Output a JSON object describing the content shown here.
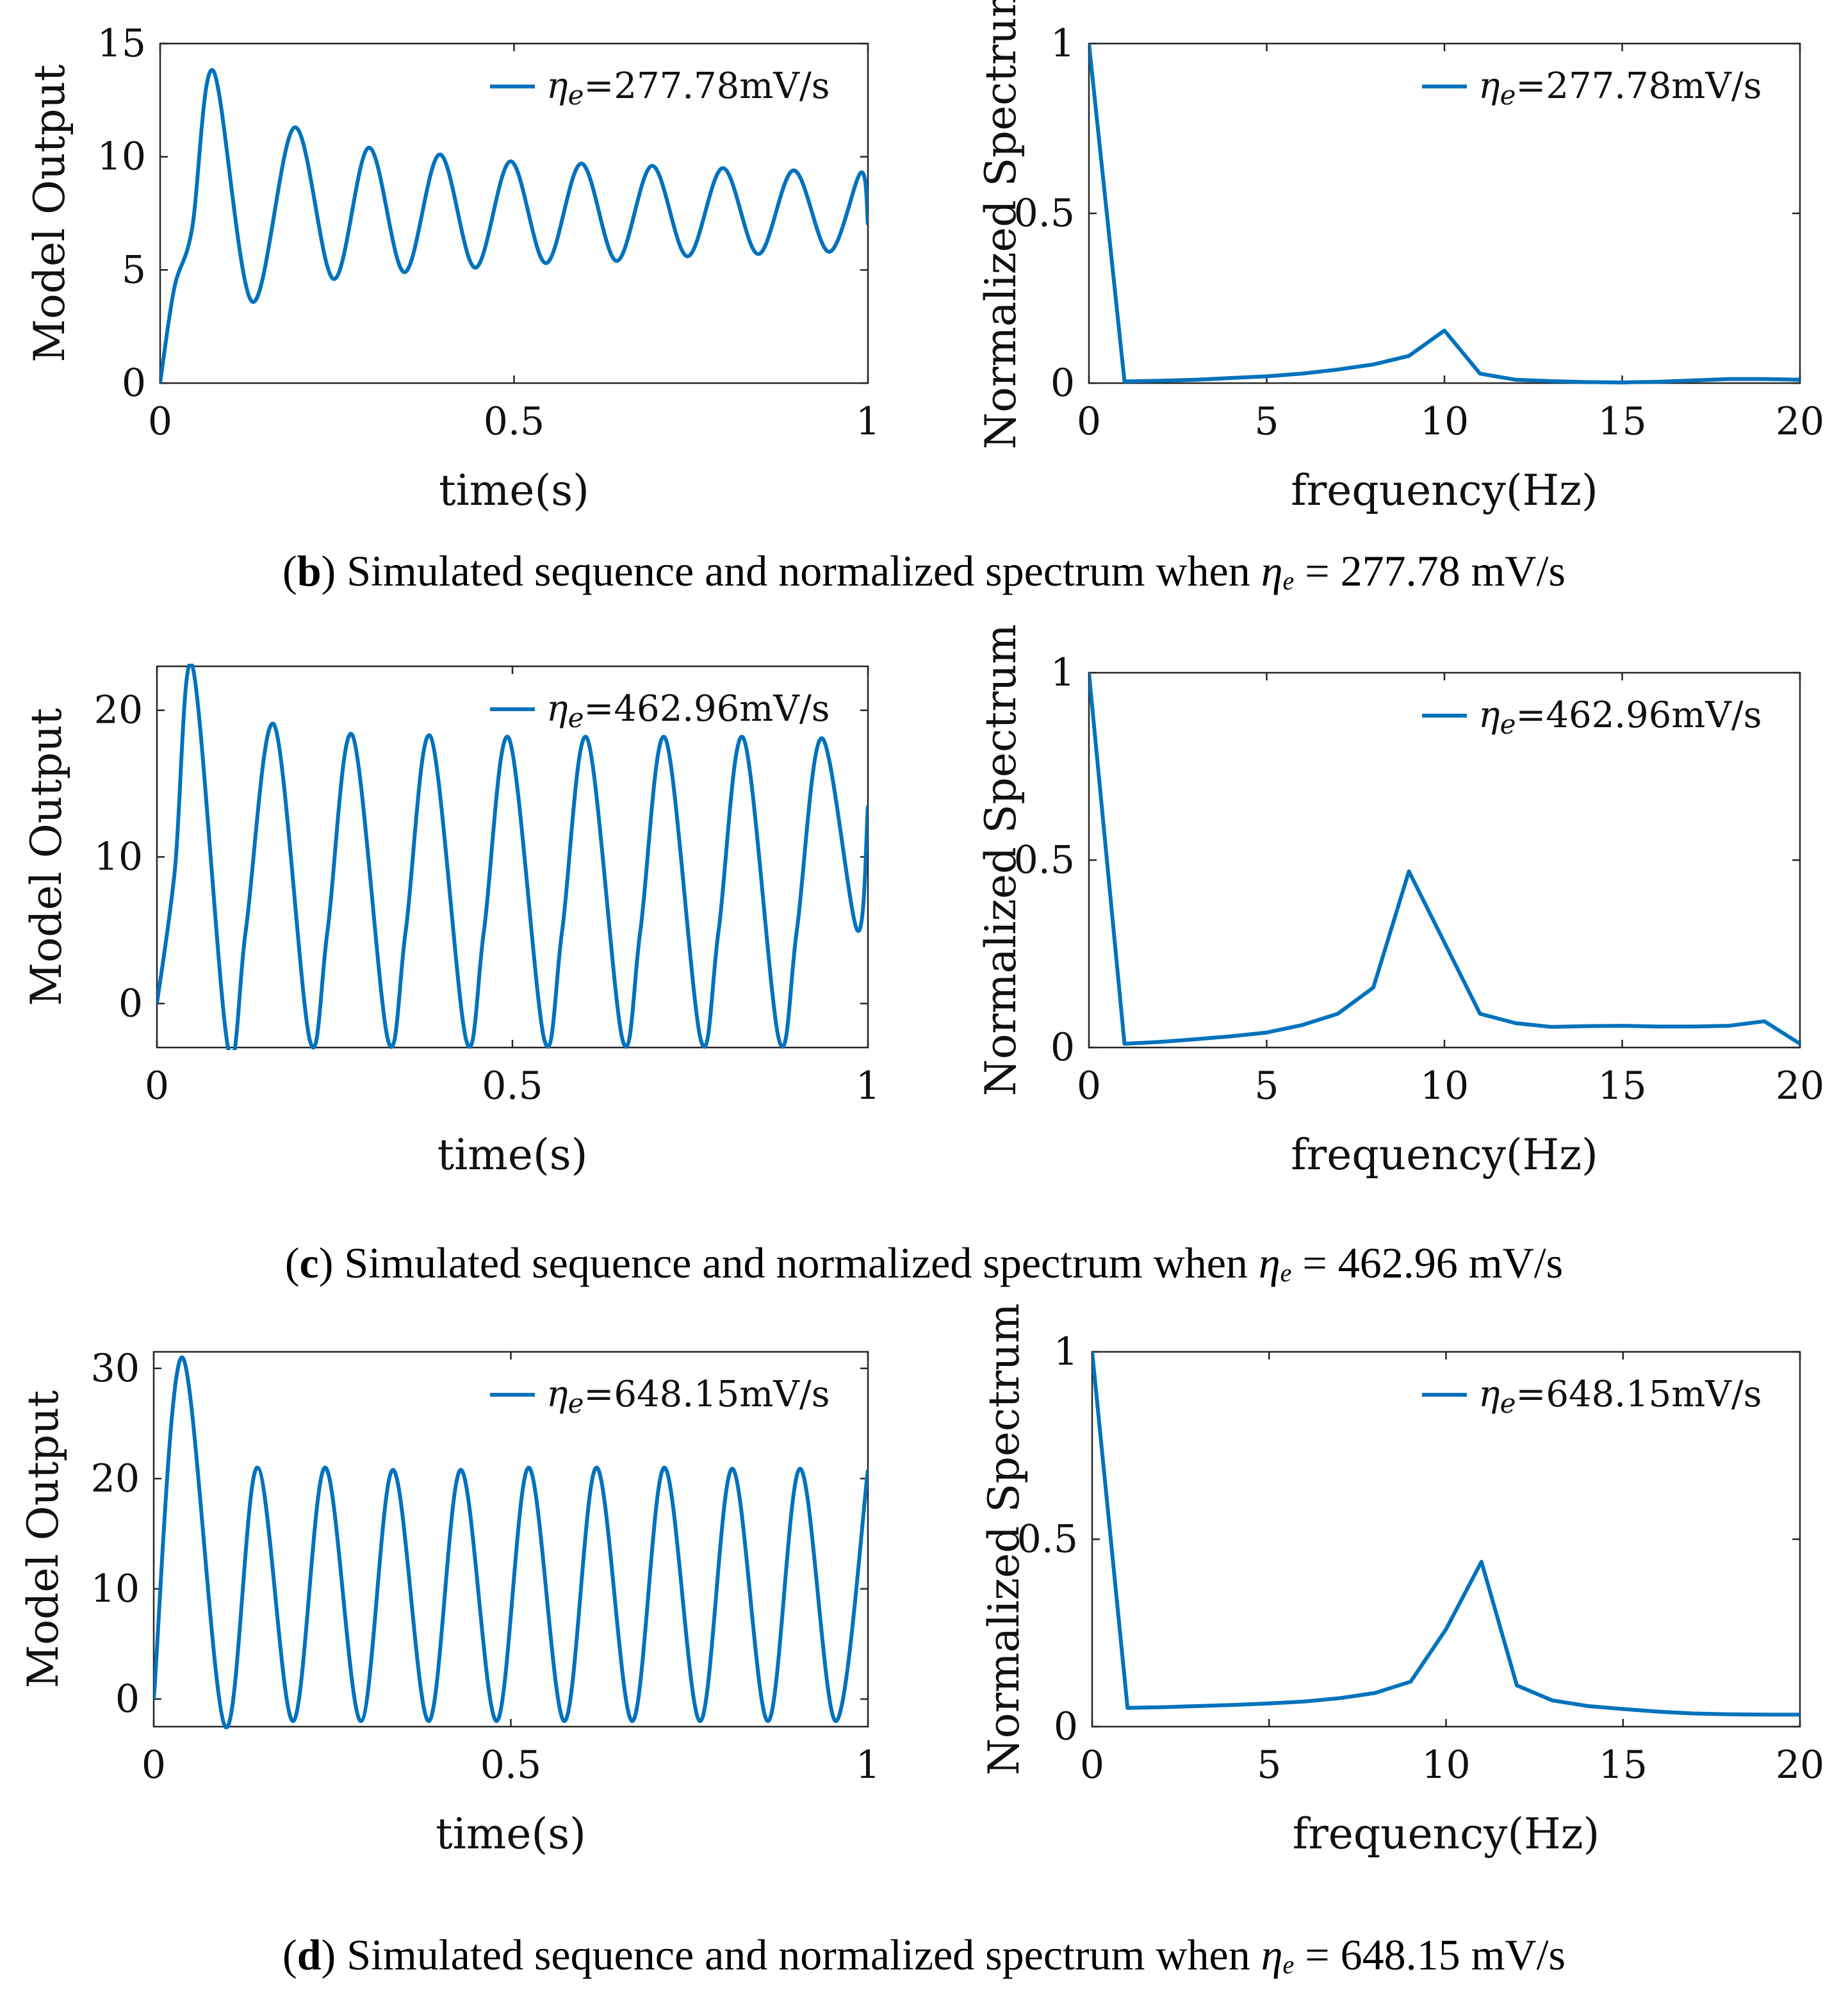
{
  "figure": {
    "panels": [
      {
        "letter": "b",
        "caption": {
          "text": "Simulated sequence and normalized spectrum when",
          "symbol": "η",
          "subscript": "e",
          "value": "= 277.78 mV/s"
        },
        "legend_label": "ηe=277.78mV/s"
      },
      {
        "letter": "c",
        "caption": {
          "text": "Simulated sequence and normalized spectrum when",
          "symbol": "η",
          "subscript": "e",
          "value": "= 462.96 mV/s"
        },
        "legend_label": "ηe=462.96mV/s"
      },
      {
        "letter": "d",
        "caption": {
          "text": "Simulated sequence and normalized spectrum when",
          "symbol": "η",
          "subscript": "e",
          "value": "= 648.15 mV/s"
        },
        "legend_label": "ηe=648.15mV/s"
      }
    ]
  },
  "chart_data": [
    {
      "id": "b-time",
      "type": "line",
      "xlabel": "time(s)",
      "ylabel": "Model Output",
      "xlim": [
        0,
        1
      ],
      "ylim": [
        0,
        15
      ],
      "xticks": [
        0,
        0.5,
        1
      ],
      "xtick_labels": [
        "0",
        "0.5",
        "1"
      ],
      "yticks": [
        0,
        5,
        10,
        15
      ],
      "ytick_labels": [
        "0",
        "5",
        "10",
        "15"
      ],
      "legend_position": "top-right",
      "line_color": "#0072BD",
      "series": [
        {
          "name": "ηe=277.78mV/s",
          "x": [
            0,
            0.02,
            0.045,
            0.075,
            0.13,
            0.19,
            0.245,
            0.295,
            0.345,
            0.395,
            0.445,
            0.495,
            0.545,
            0.595,
            0.645,
            0.695,
            0.745,
            0.795,
            0.845,
            0.895,
            0.945,
            0.99,
            1.0
          ],
          "y": [
            0,
            4.2,
            6.8,
            13.8,
            3.6,
            11.3,
            4.6,
            10.4,
            4.9,
            10.1,
            5.1,
            9.8,
            5.3,
            9.7,
            5.4,
            9.6,
            5.6,
            9.5,
            5.7,
            9.4,
            5.8,
            9.3,
            7.0
          ]
        }
      ]
    },
    {
      "id": "b-freq",
      "type": "line",
      "xlabel": "frequency(Hz)",
      "ylabel": "Normalized Spectrum",
      "xlim": [
        0,
        20
      ],
      "ylim": [
        0,
        1
      ],
      "xticks": [
        0,
        5,
        10,
        15,
        20
      ],
      "xtick_labels": [
        "0",
        "5",
        "10",
        "15",
        "20"
      ],
      "yticks": [
        0,
        0.5,
        1
      ],
      "ytick_labels": [
        "0",
        "0.5",
        "1"
      ],
      "legend_position": "top-right",
      "line_color": "#0072BD",
      "series": [
        {
          "name": "ηe=277.78mV/s",
          "x": [
            0,
            1,
            2,
            3,
            4,
            5,
            6,
            7,
            8,
            9,
            10,
            11,
            12,
            13,
            14,
            15,
            16,
            17,
            18,
            19,
            20
          ],
          "y": [
            1.0,
            0.005,
            0.007,
            0.01,
            0.015,
            0.02,
            0.028,
            0.04,
            0.055,
            0.08,
            0.155,
            0.028,
            0.01,
            0.006,
            0.003,
            0.002,
            0.004,
            0.008,
            0.012,
            0.012,
            0.01
          ]
        }
      ]
    },
    {
      "id": "c-time",
      "type": "line",
      "xlabel": "time(s)",
      "ylabel": "Model Output",
      "xlim": [
        0,
        1
      ],
      "ylim": [
        -3,
        23
      ],
      "xticks": [
        0,
        0.5,
        1
      ],
      "xtick_labels": [
        "0",
        "0.5",
        "1"
      ],
      "yticks": [
        0,
        10,
        20
      ],
      "ytick_labels": [
        "0",
        "10",
        "20"
      ],
      "legend_position": "top-right",
      "line_color": "#0072BD",
      "series": [
        {
          "name": "ηe=462.96mV/s",
          "x": [
            0,
            0.025,
            0.05,
            0.1,
            0.125,
            0.165,
            0.215,
            0.24,
            0.275,
            0.325,
            0.35,
            0.385,
            0.435,
            0.46,
            0.495,
            0.545,
            0.57,
            0.605,
            0.655,
            0.68,
            0.715,
            0.765,
            0.79,
            0.825,
            0.875,
            0.9,
            0.935,
            0.985,
            1.0
          ],
          "y": [
            0,
            9,
            23,
            -3,
            5,
            19,
            -2.5,
            5,
            18.3,
            -2.5,
            5,
            18.2,
            -2.5,
            5,
            18.1,
            -2.5,
            5,
            18.1,
            -2.5,
            5,
            18.1,
            -2.5,
            5,
            18.1,
            -2.5,
            5,
            18.1,
            5,
            13.5
          ]
        }
      ]
    },
    {
      "id": "c-freq",
      "type": "line",
      "xlabel": "frequency(Hz)",
      "ylabel": "Normalized Spectrum",
      "xlim": [
        0,
        20
      ],
      "ylim": [
        0,
        1
      ],
      "xticks": [
        0,
        5,
        10,
        15,
        20
      ],
      "xtick_labels": [
        "0",
        "5",
        "10",
        "15",
        "20"
      ],
      "yticks": [
        0,
        0.5,
        1
      ],
      "ytick_labels": [
        "0",
        "0.5",
        "1"
      ],
      "legend_position": "top-right",
      "line_color": "#0072BD",
      "series": [
        {
          "name": "ηe=462.96mV/s",
          "x": [
            0,
            1,
            2,
            3,
            4,
            5,
            6,
            7,
            8,
            9,
            10,
            11,
            12,
            13,
            14,
            15,
            16,
            17,
            18,
            19,
            20
          ],
          "y": [
            1.0,
            0.01,
            0.015,
            0.022,
            0.03,
            0.04,
            0.06,
            0.09,
            0.16,
            0.47,
            0.28,
            0.09,
            0.065,
            0.055,
            0.057,
            0.058,
            0.056,
            0.056,
            0.058,
            0.07,
            0.01
          ]
        }
      ]
    },
    {
      "id": "d-time",
      "type": "line",
      "xlabel": "time(s)",
      "ylabel": "Model Output",
      "xlim": [
        0,
        1
      ],
      "ylim": [
        -2.5,
        31.5
      ],
      "xticks": [
        0,
        0.5,
        1
      ],
      "xtick_labels": [
        "0",
        "0.5",
        "1"
      ],
      "yticks": [
        0,
        10,
        20,
        30
      ],
      "ytick_labels": [
        "0",
        "10",
        "20",
        "30"
      ],
      "legend_position": "top-right",
      "line_color": "#0072BD",
      "series": [
        {
          "name": "ηe=648.15mV/s",
          "x": [
            0,
            0.04,
            0.1,
            0.145,
            0.195,
            0.24,
            0.29,
            0.335,
            0.385,
            0.43,
            0.48,
            0.525,
            0.575,
            0.62,
            0.67,
            0.715,
            0.765,
            0.81,
            0.86,
            0.905,
            0.955,
            1.0
          ],
          "y": [
            0,
            31,
            -2.5,
            21,
            -2,
            21,
            -2,
            20.8,
            -2,
            20.8,
            -2,
            21,
            -2,
            21,
            -2,
            21,
            -2,
            20.9,
            -2,
            20.9,
            -2,
            20.8
          ]
        }
      ]
    },
    {
      "id": "d-freq",
      "type": "line",
      "xlabel": "frequency(Hz)",
      "ylabel": "Normalized Spectrum",
      "xlim": [
        0,
        20
      ],
      "ylim": [
        0,
        1
      ],
      "xticks": [
        0,
        5,
        10,
        15,
        20
      ],
      "xtick_labels": [
        "0",
        "5",
        "10",
        "15",
        "20"
      ],
      "yticks": [
        0,
        0.5,
        1
      ],
      "ytick_labels": [
        "0",
        "0.5",
        "1"
      ],
      "legend_position": "top-right",
      "line_color": "#0072BD",
      "series": [
        {
          "name": "ηe=648.15mV/s",
          "x": [
            0,
            1,
            2,
            3,
            4,
            5,
            6,
            7,
            8,
            9,
            10,
            11,
            12,
            13,
            14,
            15,
            16,
            17,
            18,
            19,
            20
          ],
          "y": [
            1.0,
            0.05,
            0.052,
            0.055,
            0.058,
            0.062,
            0.067,
            0.076,
            0.09,
            0.12,
            0.26,
            0.44,
            0.11,
            0.07,
            0.055,
            0.047,
            0.04,
            0.035,
            0.033,
            0.032,
            0.032
          ]
        }
      ]
    }
  ]
}
